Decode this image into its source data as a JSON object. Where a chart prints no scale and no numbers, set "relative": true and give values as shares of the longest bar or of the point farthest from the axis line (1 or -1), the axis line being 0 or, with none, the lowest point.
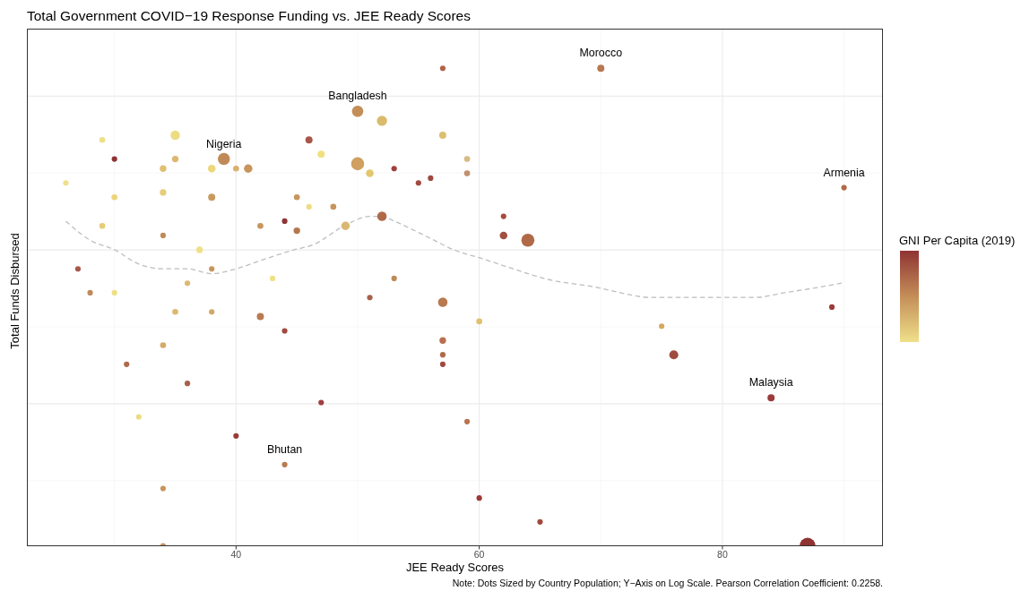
{
  "chart_data": {
    "type": "bubble",
    "title": "Total Government COVID−19 Response Funding vs. JEE Ready Scores",
    "xlabel": "JEE Ready Scores",
    "ylabel": "Total Funds Disbursed",
    "clabel": "GNI Per Capita (2019)",
    "relative": true,
    "xlim": [
      22.8,
      93.2
    ],
    "xticks": [
      40,
      60,
      80
    ],
    "tick_labels": "x",
    "grid": true,
    "series": [
      {
        "x": [
          29,
          35,
          30,
          39,
          46,
          35,
          34,
          38,
          40,
          41,
          26,
          30,
          34,
          38,
          45,
          46,
          29,
          42,
          44,
          45,
          34,
          37,
          38,
          27,
          28,
          30,
          36,
          43,
          57,
          50,
          52,
          47,
          57,
          50,
          51,
          53,
          55,
          56,
          59,
          59,
          48,
          49,
          52,
          62,
          62,
          64,
          53,
          70,
          90,
          35,
          38,
          42,
          44,
          34,
          31,
          36,
          32,
          40,
          44,
          34,
          34,
          51,
          57,
          60,
          57,
          57,
          57,
          47,
          59,
          60,
          65,
          89,
          75,
          76,
          84,
          87
        ],
        "values": [
          0.85,
          0.86,
          0.81,
          0.81,
          0.85,
          0.81,
          0.79,
          0.79,
          0.79,
          0.79,
          0.76,
          0.73,
          0.74,
          0.73,
          0.73,
          0.71,
          0.67,
          0.67,
          0.68,
          0.66,
          0.65,
          0.62,
          0.58,
          0.58,
          0.53,
          0.53,
          0.55,
          0.56,
          1.0,
          0.91,
          0.89,
          0.82,
          0.86,
          0.8,
          0.78,
          0.79,
          0.76,
          0.77,
          0.81,
          0.78,
          0.71,
          0.67,
          0.69,
          0.69,
          0.65,
          0.64,
          0.56,
          1.0,
          0.75,
          0.49,
          0.49,
          0.48,
          0.45,
          0.42,
          0.38,
          0.34,
          0.27,
          0.23,
          0.17,
          0.12,
          0,
          0.52,
          0.51,
          0.47,
          0.43,
          0.4,
          0.38,
          0.3,
          0.26,
          0.1,
          0.05,
          0.5,
          0.46,
          0.4,
          0.31,
          0
        ],
        "sizes": [
          0.14,
          0.35,
          0.12,
          0.57,
          0.2,
          0.17,
          0.17,
          0.23,
          0.14,
          0.28,
          0.12,
          0.14,
          0.17,
          0.2,
          0.14,
          0.12,
          0.14,
          0.14,
          0.12,
          0.17,
          0.12,
          0.17,
          0.12,
          0.12,
          0.12,
          0.12,
          0.12,
          0.12,
          0.12,
          0.5,
          0.41,
          0.2,
          0.2,
          0.67,
          0.23,
          0.12,
          0.12,
          0.12,
          0.14,
          0.14,
          0.14,
          0.28,
          0.35,
          0.12,
          0.23,
          0.67,
          0.12,
          0.2,
          0.12,
          0.14,
          0.12,
          0.2,
          0.12,
          0.14,
          0.12,
          0.12,
          0.12,
          0.12,
          0.12,
          0.12,
          0.12,
          0.12,
          0.35,
          0.14,
          0.17,
          0.12,
          0.12,
          0.12,
          0.12,
          0.12,
          0.12,
          0.12,
          0.12,
          0.32,
          0.2,
          1
        ],
        "colors": [
          "#eee08a",
          "#eddc82",
          "#8e3434",
          "#c08a58",
          "#a8574a",
          "#dcb870",
          "#e0c070",
          "#ecd77a",
          "#d8b070",
          "#c9955c",
          "#efe08a",
          "#ecd47a",
          "#e6cd78",
          "#c99a60",
          "#c8955e",
          "#eedc80",
          "#e6cc78",
          "#c9955c",
          "#8f3535",
          "#b3784f",
          "#c08a58",
          "#efe085",
          "#c8955e",
          "#a8584a",
          "#c08a58",
          "#efe085",
          "#dcb870",
          "#efe085",
          "#b06548",
          "#c48e58",
          "#d9bb6b",
          "#f0e080",
          "#dcc070",
          "#cfa060",
          "#e3c670",
          "#a04040",
          "#a24a40",
          "#9c4a40",
          "#d6bb84",
          "#c29070",
          "#c8955e",
          "#d8b870",
          "#b06a48",
          "#a84a40",
          "#a0503f",
          "#b06a48",
          "#c08a58",
          "#b87850",
          "#b06a48",
          "#dcb870",
          "#d0a868",
          "#b87a50",
          "#a04a40",
          "#d4aa68",
          "#b06a48",
          "#a8604a",
          "#eedb80",
          "#9a3a36",
          "#b87a50",
          "#c8955e",
          "#c8955e",
          "#a8604a",
          "#b87a50",
          "#e0c070",
          "#b87050",
          "#b06a48",
          "#a04a40",
          "#a04040",
          "#b8744f",
          "#9c3a36",
          "#a04a3f",
          "#9c3a3a",
          "#d4a860",
          "#a04a40",
          "#9c3a3a",
          "#8f3333"
        ]
      },
      {
        "type": "line",
        "color": "#bebebe",
        "line_style": "dashed",
        "x": [
          26,
          28,
          30,
          32,
          34,
          36,
          38,
          40,
          42.3,
          44.8,
          46.3,
          48.9,
          51,
          52,
          53,
          55.5,
          57.9,
          60.4,
          62.8,
          65.3,
          69.9,
          71.6,
          74.1,
          76.5,
          79.7,
          82.7,
          85.1,
          87.6,
          89.8
        ],
        "values": [
          0.68,
          0.64,
          0.62,
          0.59,
          0.58,
          0.58,
          0.57,
          0.58,
          0.6,
          0.62,
          0.63,
          0.67,
          0.69,
          0.69,
          0.68,
          0.65,
          0.62,
          0.6,
          0.58,
          0.56,
          0.54,
          0.53,
          0.52,
          0.52,
          0.52,
          0.52,
          0.53,
          0.54,
          0.55
        ]
      }
    ],
    "annotations": [
      {
        "text": "Morocco",
        "x": 70,
        "y": 1.0
      },
      {
        "text": "Bangladesh",
        "x": 50,
        "y": 0.91
      },
      {
        "text": "Nigeria",
        "x": 39,
        "y": 0.81
      },
      {
        "text": "Armenia",
        "x": 90,
        "y": 0.75
      },
      {
        "text": "Malaysia",
        "x": 84,
        "y": 0.31
      },
      {
        "text": "Bhutan",
        "x": 44,
        "y": 0.17
      },
      "Note: Dots Sized by Country Population; Y−Axis on Log Scale. Pearson Correlation Coefficient: 0.2258."
    ]
  }
}
